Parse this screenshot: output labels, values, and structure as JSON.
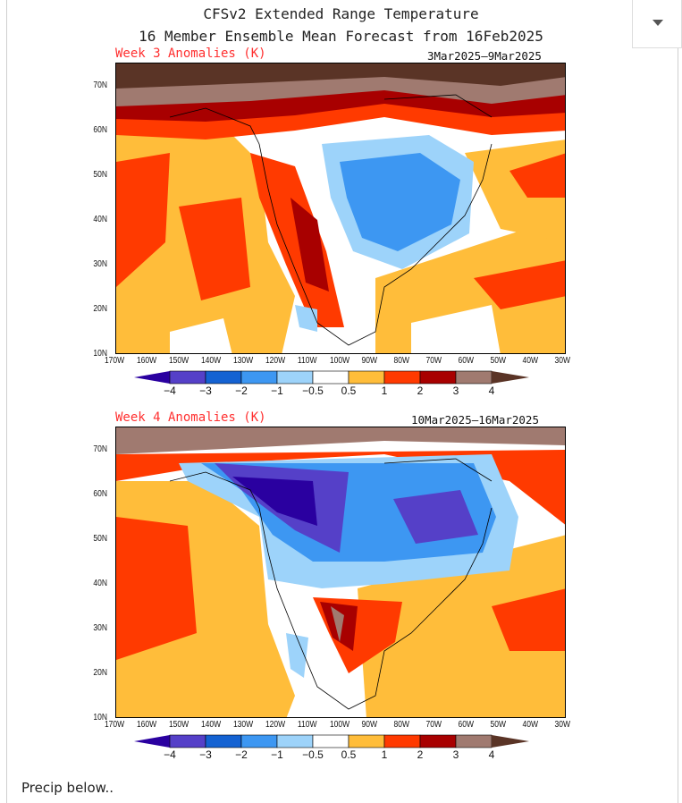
{
  "header": {
    "title": "CFSv2 Extended Range Temperature",
    "subtitle": "16 Member Ensemble Mean Forecast from 16Feb2025"
  },
  "panels": [
    {
      "label": "Week 3 Anomalies (K)",
      "dates": "3Mar2025–9Mar2025"
    },
    {
      "label": "Week 4 Anomalies (K)",
      "dates": "10Mar2025–16Mar2025"
    }
  ],
  "lat_ticks": [
    "70N",
    "60N",
    "50N",
    "40N",
    "30N",
    "20N",
    "10N"
  ],
  "lon_ticks": [
    "170W",
    "160W",
    "150W",
    "140W",
    "130W",
    "120W",
    "110W",
    "100W",
    "90W",
    "80W",
    "70W",
    "60W",
    "50W",
    "40W",
    "30W"
  ],
  "colorbar": {
    "labels": [
      "−4",
      "−3",
      "−2",
      "−1",
      "−0.5",
      "0.5",
      "1",
      "2",
      "3",
      "4"
    ],
    "colors": [
      "#2a00a0",
      "#5540c8",
      "#1462d2",
      "#3d97f2",
      "#9dd3fa",
      "#ffffff",
      "#ffbd3a",
      "#ff3a00",
      "#a80000",
      "#a07a70",
      "#5a3426"
    ]
  },
  "dropdown": {
    "icon": "caret-down-icon"
  },
  "footer": {
    "text": "Precip below.."
  }
}
